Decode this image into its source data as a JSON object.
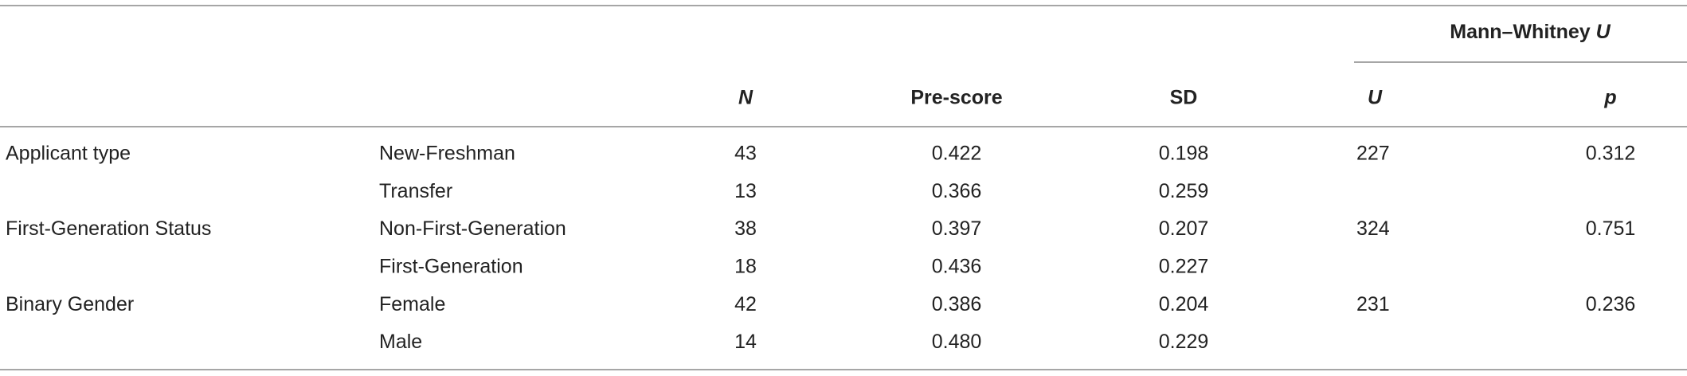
{
  "table": {
    "group_header": {
      "label": "Mann–Whitney",
      "symbol": "U"
    },
    "columns": [
      "N",
      "Pre-score",
      "SD",
      "U",
      "p"
    ],
    "rows": [
      {
        "group": "Applicant type",
        "label": "New-Freshman",
        "n": "43",
        "pre": "0.422",
        "sd": "0.198",
        "u": "227",
        "p": "0.312"
      },
      {
        "label": "Transfer",
        "n": "13",
        "pre": "0.366",
        "sd": "0.259"
      },
      {
        "group": "First-Generation Status",
        "label": "Non-First-Generation",
        "n": "38",
        "pre": "0.397",
        "sd": "0.207",
        "u": "324",
        "p": "0.751"
      },
      {
        "label": "First-Generation",
        "n": "18",
        "pre": "0.436",
        "sd": "0.227"
      },
      {
        "group": "Binary Gender",
        "label": "Female",
        "n": "42",
        "pre": "0.386",
        "sd": "0.204",
        "u": "231",
        "p": "0.236"
      },
      {
        "label": "Male",
        "n": "14",
        "pre": "0.480",
        "sd": "0.229"
      }
    ]
  }
}
